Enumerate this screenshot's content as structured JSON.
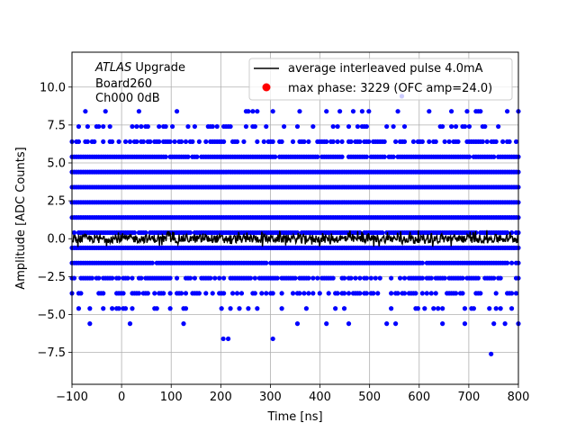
{
  "chart_data": {
    "type": "scatter",
    "xlabel": "Time [ns]",
    "ylabel": "Amplitude [ADC Counts]",
    "xlim": [
      -100,
      800
    ],
    "ylim": [
      -9.6,
      12.3
    ],
    "xticks": [
      -100,
      0,
      100,
      200,
      300,
      400,
      500,
      600,
      700,
      800
    ],
    "yticks": [
      -7.5,
      -5.0,
      -2.5,
      0.0,
      2.5,
      5.0,
      7.5,
      10.0
    ],
    "xtick_labels": [
      "−100",
      "0",
      "100",
      "200",
      "300",
      "400",
      "500",
      "600",
      "700",
      "800"
    ],
    "ytick_labels": [
      "−7.5",
      "−5.0",
      "−2.5",
      "0.0",
      "2.5",
      "5.0",
      "7.5",
      "10.0"
    ],
    "grid": true,
    "legend_position": "top-right",
    "annotation": {
      "italic": "ATLAS",
      "line1_rest": " Upgrade",
      "line2": " Board260",
      "line3": " Ch000 0dB"
    },
    "series": [
      {
        "name": "average interleaved pulse 4.0mA",
        "kind": "line",
        "color": "#000000",
        "x_start": -100,
        "x_end": 800,
        "mean": 0.0,
        "noise_amplitude": 0.35
      },
      {
        "name": "max phase: 3229 (OFC amp=24.0)",
        "kind": "marker",
        "color": "#ff0000",
        "x": null,
        "y": null
      },
      {
        "kind": "scatter",
        "color": "#0000ff",
        "bands": [
          {
            "y": 8.4,
            "density": 0.14
          },
          {
            "y": 7.4,
            "density": 0.3
          },
          {
            "y": 6.4,
            "density": 0.55
          },
          {
            "y": 5.4,
            "density": 0.95
          },
          {
            "y": 4.4,
            "density": 1.0
          },
          {
            "y": 3.4,
            "density": 1.0
          },
          {
            "y": 2.4,
            "density": 1.0
          },
          {
            "y": 1.4,
            "density": 1.0
          },
          {
            "y": 0.4,
            "density": 0.95
          },
          {
            "y": -0.6,
            "density": 1.0
          },
          {
            "y": -1.6,
            "density": 0.95
          },
          {
            "y": -2.6,
            "density": 0.7
          },
          {
            "y": -3.6,
            "density": 0.5
          },
          {
            "y": -4.6,
            "density": 0.22
          },
          {
            "y": -5.6,
            "density": 0.07
          }
        ],
        "extra_points": [
          {
            "x": 295,
            "y": 10.0
          },
          {
            "x": 565,
            "y": 9.4
          },
          {
            "x": 205,
            "y": -6.6
          },
          {
            "x": 215,
            "y": -6.6
          },
          {
            "x": 305,
            "y": -6.6
          },
          {
            "x": 745,
            "y": -7.6
          }
        ]
      }
    ]
  }
}
